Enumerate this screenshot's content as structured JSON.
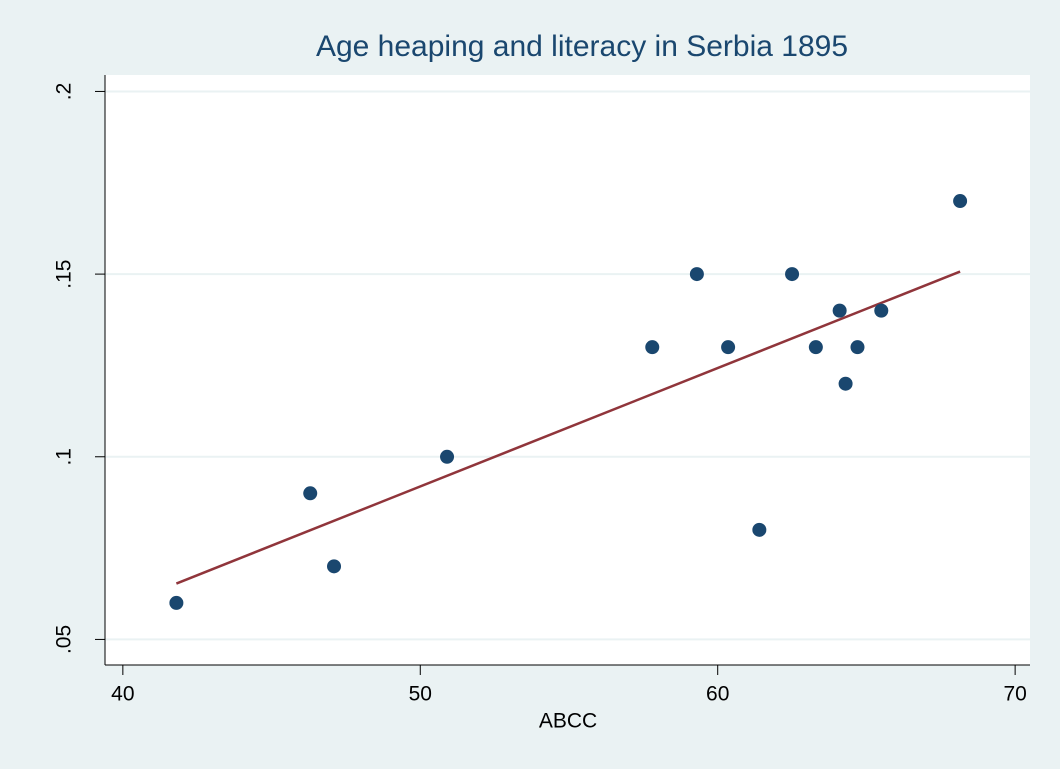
{
  "chart_data": {
    "type": "scatter",
    "title": "Age heaping and literacy in Serbia 1895",
    "x_label": "ABCC",
    "x": [
      41.8,
      46.3,
      47.1,
      50.9,
      57.8,
      59.3,
      60.35,
      61.4,
      62.5,
      63.3,
      64.1,
      64.3,
      64.7,
      65.5,
      68.15
    ],
    "values": [
      0.06,
      0.09,
      0.07,
      0.1,
      0.13,
      0.15,
      0.13,
      0.08,
      0.15,
      0.13,
      0.14,
      0.12,
      0.13,
      0.14,
      0.17
    ],
    "color": "#1a476f",
    "fit": {
      "x": [
        41.8,
        68.15
      ],
      "values": [
        0.0653,
        0.1507
      ],
      "color": "#90353b"
    },
    "xlim": [
      39.4,
      70.5
    ],
    "ylim": [
      0.043,
      0.2045
    ],
    "xticks": [
      40,
      50,
      60,
      70
    ],
    "yticks": [
      {
        "value": 0.05,
        "label": ".05"
      },
      {
        "value": 0.1,
        "label": ".1"
      },
      {
        "value": 0.15,
        "label": ".15"
      },
      {
        "value": 0.2,
        "label": ".2"
      }
    ],
    "grid": true
  }
}
